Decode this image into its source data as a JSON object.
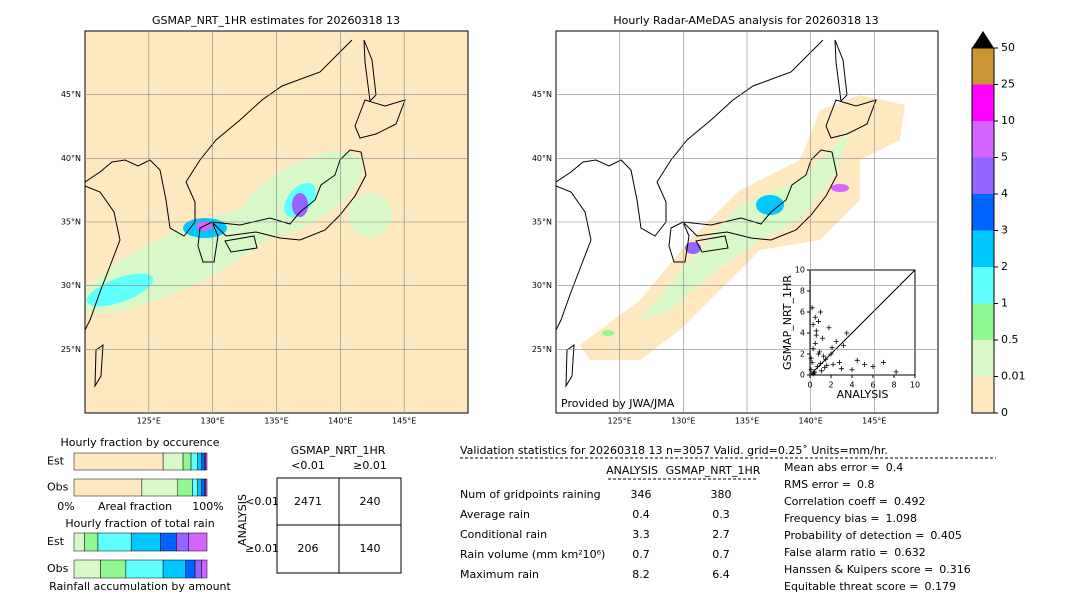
{
  "maps": [
    {
      "title": "GSMAP_NRT_1HR estimates for 20260318 13",
      "lonlim": [
        120,
        150
      ],
      "latlim": [
        20,
        50
      ]
    },
    {
      "title": "Hourly Radar-AMeDAS analysis for 20260318 13",
      "lonlim": [
        120,
        150
      ],
      "latlim": [
        20,
        50
      ],
      "credit": "Provided by JWA/JMA"
    }
  ],
  "lat_ticks": [
    {
      "value": 45,
      "label": "45°N"
    },
    {
      "value": 40,
      "label": "40°N"
    },
    {
      "value": 35,
      "label": "35°N"
    },
    {
      "value": 30,
      "label": "30°N"
    },
    {
      "value": 25,
      "label": "25°N"
    }
  ],
  "lon_ticks": [
    {
      "value": 125,
      "label": "125°E"
    },
    {
      "value": 130,
      "label": "130°E"
    },
    {
      "value": 135,
      "label": "135°E"
    },
    {
      "value": 140,
      "label": "140°E"
    },
    {
      "value": 145,
      "label": "145°E"
    }
  ],
  "colorbar": {
    "ticks": [
      0,
      0.01,
      0.5,
      1,
      2,
      3,
      4,
      5,
      10,
      25,
      50
    ],
    "colors": [
      "#fde8c0",
      "#d8f8c8",
      "#90f890",
      "#60ffff",
      "#00c8ff",
      "#0064ff",
      "#9664ff",
      "#d264ff",
      "#ff00ff",
      "#c89632"
    ],
    "extend_color": "#000000"
  },
  "scatter": {
    "xlabel": "ANALYSIS",
    "ylabel": "GSMAP_NRT_1HR",
    "xlim": [
      0,
      10
    ],
    "ylim": [
      0,
      10
    ],
    "xticks": [
      0,
      2,
      4,
      6,
      8,
      10
    ],
    "yticks": [
      0,
      2,
      4,
      6,
      8,
      10
    ],
    "x": [
      0.1,
      0.2,
      0.3,
      0.5,
      0.6,
      0.8,
      1.0,
      1.2,
      0.4,
      0.7,
      1.5,
      1.8,
      2.0,
      2.2,
      0.3,
      0.9,
      1.1,
      2.5,
      3.0,
      3.2,
      3.5,
      0.2,
      0.5,
      1.3,
      1.6,
      0.1,
      0.4,
      0.8,
      2.8,
      4.0,
      4.5,
      5.2,
      6.0,
      7.0,
      8.2,
      0.6,
      1.0,
      0.3,
      2.1,
      1.4
    ],
    "y": [
      0.5,
      1.2,
      2.5,
      3.0,
      4.2,
      5.1,
      6.0,
      3.5,
      0.2,
      0.8,
      1.5,
      4.5,
      2.0,
      1.0,
      0.1,
      2.2,
      0.4,
      3.2,
      0.6,
      2.8,
      4.0,
      6.4,
      5.5,
      1.8,
      0.9,
      1.6,
      0.3,
      2.0,
      1.2,
      0.5,
      1.4,
      1.0,
      0.8,
      1.2,
      0.3,
      3.8,
      1.1,
      4.8,
      2.6,
      0.7
    ]
  },
  "occurrence": {
    "title": "Hourly fraction by occurence",
    "xlabel": "Areal fraction",
    "xticks": [
      {
        "value": 0,
        "label": "0%"
      },
      {
        "value": 100,
        "label": "100%"
      }
    ],
    "rows": [
      {
        "name": "Est",
        "values": [
          67,
          15,
          6,
          5,
          3,
          2,
          1,
          1
        ]
      },
      {
        "name": "Obs",
        "values": [
          51,
          27,
          11,
          4,
          3,
          2,
          1,
          1
        ]
      }
    ]
  },
  "total_rain": {
    "title": "Hourly fraction of total rain",
    "xlabel": "Rainfall accumulation by amount",
    "rows": [
      {
        "name": "Est",
        "values": [
          0,
          8,
          10,
          25,
          22,
          12,
          9,
          14
        ]
      },
      {
        "name": "Obs",
        "values": [
          0,
          20,
          19,
          28,
          17,
          7,
          5,
          4
        ]
      }
    ]
  },
  "contingency": {
    "col_title": "GSMAP_NRT_1HR",
    "row_title": "ANALYSIS",
    "col_labels": [
      "<0.01",
      "≥0.01"
    ],
    "row_labels": [
      "<0.01",
      "≥0.01"
    ],
    "cells": [
      [
        2471,
        240
      ],
      [
        206,
        140
      ]
    ]
  },
  "validation": {
    "header": "Validation statistics for 20260318 13  n=3057 Valid. grid=0.25˚ Units=mm/hr.",
    "columns": [
      "ANALYSIS",
      "GSMAP_NRT_1HR"
    ],
    "rows": [
      {
        "label": "Num of gridpoints raining",
        "values": [
          346,
          380
        ]
      },
      {
        "label": "Average rain",
        "values": [
          0.4,
          0.3
        ]
      },
      {
        "label": "Conditional rain",
        "values": [
          3.3,
          2.7
        ]
      },
      {
        "label": "Rain volume (mm km²10⁶)",
        "values": [
          0.7,
          0.7
        ]
      },
      {
        "label": "Maximum rain",
        "values": [
          8.2,
          6.4
        ]
      }
    ],
    "scores": [
      {
        "label": "Mean abs error =",
        "value": 0.4
      },
      {
        "label": "RMS error =",
        "value": 0.8
      },
      {
        "label": "Correlation coeff =",
        "value": 0.492
      },
      {
        "label": "Frequency bias =",
        "value": 1.098
      },
      {
        "label": "Probability of detection =",
        "value": 0.405
      },
      {
        "label": "False alarm ratio =",
        "value": 0.632
      },
      {
        "label": "Hanssen & Kuipers score =",
        "value": 0.316
      },
      {
        "label": "Equitable threat score =",
        "value": 0.179
      }
    ]
  }
}
